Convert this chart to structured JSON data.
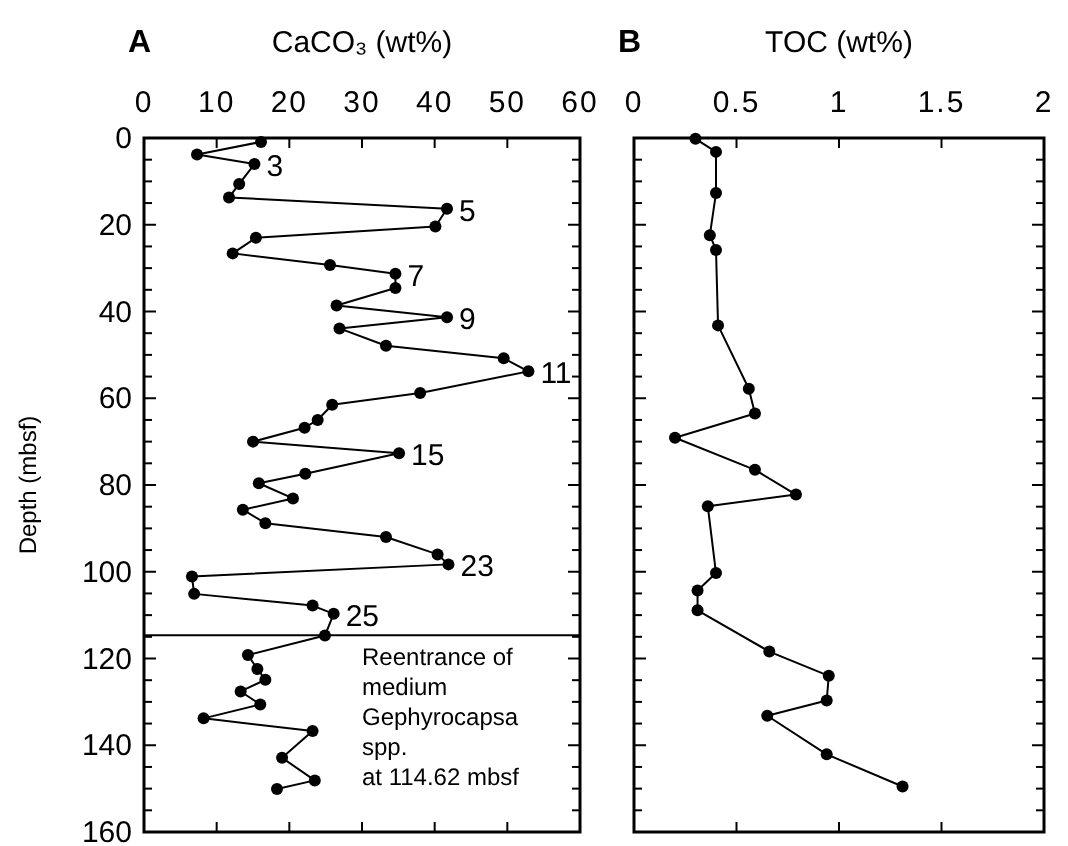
{
  "chart_data": [
    {
      "type": "line",
      "title": "A",
      "xlabel": "CaCO₃ (wt%)",
      "ylabel": "Depth (mbsf)",
      "marker": "circle",
      "line_style": "solid",
      "grid": false,
      "xlim": [
        0,
        60
      ],
      "xticks": [
        0,
        10,
        20,
        30,
        40,
        50,
        60
      ],
      "ylim": [
        160,
        0
      ],
      "yticks": [
        0,
        {
          "value": 5,
          "label": null
        },
        {
          "value": 10,
          "label": null
        },
        {
          "value": 15,
          "label": null
        },
        20,
        {
          "value": 25,
          "label": null
        },
        {
          "value": 30,
          "label": null
        },
        {
          "value": 35,
          "label": null
        },
        40,
        {
          "value": 45,
          "label": null
        },
        {
          "value": 50,
          "label": null
        },
        {
          "value": 55,
          "label": null
        },
        60,
        {
          "value": 65,
          "label": null
        },
        {
          "value": 70,
          "label": null
        },
        {
          "value": 75,
          "label": null
        },
        80,
        {
          "value": 85,
          "label": null
        },
        {
          "value": 90,
          "label": null
        },
        {
          "value": 95,
          "label": null
        },
        100,
        {
          "value": 105,
          "label": null
        },
        {
          "value": 110,
          "label": null
        },
        {
          "value": 115,
          "label": null
        },
        120,
        {
          "value": 125,
          "label": null
        },
        {
          "value": 130,
          "label": null
        },
        {
          "value": 135,
          "label": null
        },
        140,
        {
          "value": 145,
          "label": null
        },
        {
          "value": 150,
          "label": null
        },
        {
          "value": 155,
          "label": null
        },
        160
      ],
      "series": [
        {
          "color": "#000000",
          "x": [
            16.1,
            7.3,
            15.2,
            13.1,
            11.7,
            41.7,
            40.1,
            15.4,
            12.2,
            25.6,
            34.6,
            34.6,
            26.5,
            41.7,
            26.9,
            33.3,
            49.5,
            52.9,
            38.0,
            25.9,
            23.9,
            22.1,
            15.0,
            35.1,
            22.2,
            15.8,
            20.5,
            13.6,
            16.7,
            33.3,
            40.4,
            41.9,
            6.6,
            6.9,
            23.2,
            26.1,
            24.9,
            14.3,
            15.6,
            16.7,
            13.3,
            16.0,
            8.2,
            23.2,
            19.0,
            23.5,
            18.3
          ],
          "values": [
            0.9,
            3.8,
            6.0,
            10.6,
            13.7,
            16.3,
            20.4,
            23.0,
            26.6,
            29.3,
            31.3,
            34.6,
            38.6,
            41.3,
            43.9,
            47.9,
            50.8,
            53.8,
            58.8,
            61.5,
            65.0,
            66.8,
            70.0,
            72.7,
            77.4,
            79.6,
            83.1,
            85.7,
            88.8,
            92.0,
            96.0,
            98.3,
            101.1,
            105.1,
            107.8,
            109.7,
            114.7,
            119.2,
            122.4,
            124.9,
            127.6,
            130.6,
            133.8,
            136.7,
            142.9,
            148.1,
            150.1
          ]
        }
      ],
      "annotations": [
        {
          "text": "3",
          "x": 15.2,
          "y": 6.0
        },
        {
          "text": "5",
          "x": 41.7,
          "y": 16.3
        },
        {
          "text": "7",
          "x": 34.6,
          "y": 31.3
        },
        {
          "text": "9",
          "x": 41.7,
          "y": 41.3
        },
        {
          "text": "11",
          "x": 52.9,
          "y": 53.8
        },
        {
          "text": "15",
          "x": 35.1,
          "y": 72.7
        },
        {
          "text": "23",
          "x": 41.9,
          "y": 98.3
        },
        {
          "text": "25",
          "x": 26.1,
          "y": 109.7
        }
      ],
      "ref_lines": [
        {
          "axis": "y",
          "value": 114.62,
          "label": "Reentrance of\nmedium\nGephyrocapsa\nspp.\nat 114.62 mbsf",
          "color": "#000000",
          "line_style": "solid"
        }
      ]
    },
    {
      "type": "line",
      "title": "B",
      "xlabel": "TOC (wt%)",
      "marker": "circle",
      "line_style": "solid",
      "grid": false,
      "tick_labels": "x",
      "xlim": [
        0,
        2
      ],
      "xticks": [
        0,
        0.5,
        1,
        1.5,
        2
      ],
      "ylim": [
        160,
        0
      ],
      "yticks": [
        0,
        {
          "value": 5,
          "label": null
        },
        {
          "value": 10,
          "label": null
        },
        {
          "value": 15,
          "label": null
        },
        20,
        {
          "value": 25,
          "label": null
        },
        {
          "value": 30,
          "label": null
        },
        {
          "value": 35,
          "label": null
        },
        40,
        {
          "value": 45,
          "label": null
        },
        {
          "value": 50,
          "label": null
        },
        {
          "value": 55,
          "label": null
        },
        60,
        {
          "value": 65,
          "label": null
        },
        {
          "value": 70,
          "label": null
        },
        {
          "value": 75,
          "label": null
        },
        80,
        {
          "value": 85,
          "label": null
        },
        {
          "value": 90,
          "label": null
        },
        {
          "value": 95,
          "label": null
        },
        100,
        {
          "value": 105,
          "label": null
        },
        {
          "value": 110,
          "label": null
        },
        {
          "value": 115,
          "label": null
        },
        120,
        {
          "value": 125,
          "label": null
        },
        {
          "value": 130,
          "label": null
        },
        {
          "value": 135,
          "label": null
        },
        140,
        {
          "value": 145,
          "label": null
        },
        {
          "value": 150,
          "label": null
        },
        {
          "value": 155,
          "label": null
        },
        160
      ],
      "series": [
        {
          "color": "#000000",
          "x": [
            0.3,
            0.4,
            0.4,
            0.37,
            0.4,
            0.41,
            0.56,
            0.59,
            0.2,
            0.59,
            0.79,
            0.36,
            0.4,
            0.31,
            0.31,
            0.66,
            0.95,
            0.94,
            0.65,
            0.94,
            1.31
          ],
          "values": [
            0.2,
            3.2,
            12.7,
            22.4,
            25.8,
            43.2,
            57.8,
            63.5,
            69.1,
            76.5,
            82.2,
            84.9,
            100.3,
            104.3,
            108.9,
            118.4,
            124.0,
            129.7,
            133.2,
            142.1,
            149.5
          ]
        }
      ]
    }
  ]
}
